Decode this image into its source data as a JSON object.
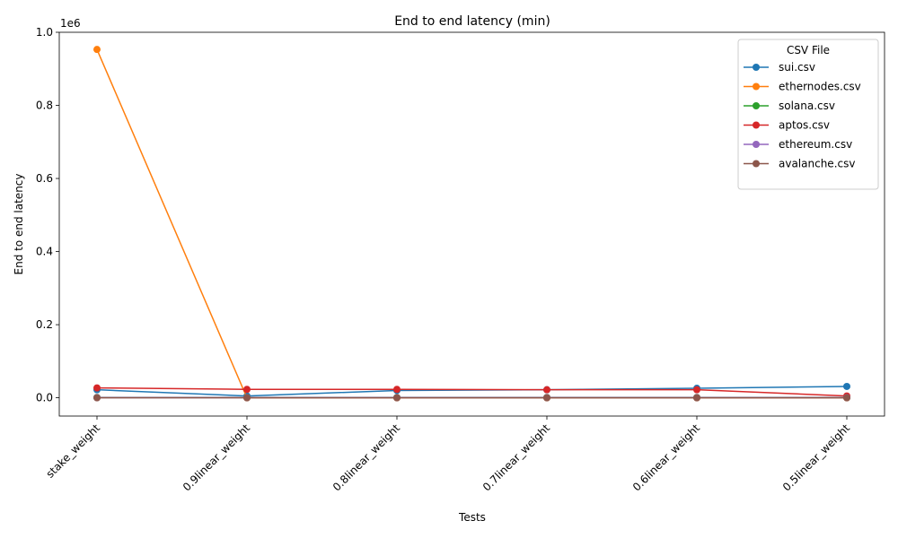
{
  "chart_data": {
    "type": "line",
    "title": "End to end latency (min)",
    "xlabel": "Tests",
    "ylabel": "End to end latency",
    "y_offset_text": "1e6",
    "y_scale": 1000000,
    "categories": [
      "stake_weight",
      "0.9linear_weight",
      "0.8linear_weight",
      "0.7linear_weight",
      "0.6linear_weight",
      "0.5linear_weight"
    ],
    "ylim": [
      -50000,
      1000000
    ],
    "yticks": [
      0,
      200000,
      400000,
      600000,
      800000,
      1000000
    ],
    "ytick_labels": [
      "0.0",
      "0.2",
      "0.4",
      "0.6",
      "0.8",
      "1.0"
    ],
    "grid": false,
    "legend": {
      "title": "CSV File",
      "placement": "top-right"
    },
    "series": [
      {
        "name": "sui.csv",
        "color": "#1f77b4",
        "values": [
          22000,
          5000,
          20000,
          22000,
          26000,
          31000
        ]
      },
      {
        "name": "ethernodes.csv",
        "color": "#ff7f0e",
        "values": [
          953000,
          0,
          0,
          0,
          0,
          0
        ]
      },
      {
        "name": "solana.csv",
        "color": "#2ca02c",
        "values": [
          1000,
          1000,
          1000,
          1000,
          1000,
          1000
        ]
      },
      {
        "name": "aptos.csv",
        "color": "#d62728",
        "values": [
          27000,
          23000,
          23000,
          22000,
          22000,
          5000
        ]
      },
      {
        "name": "ethereum.csv",
        "color": "#9467bd",
        "values": [
          500,
          500,
          500,
          500,
          500,
          500
        ]
      },
      {
        "name": "avalanche.csv",
        "color": "#8c564b",
        "values": [
          0,
          0,
          0,
          0,
          0,
          0
        ]
      }
    ]
  }
}
